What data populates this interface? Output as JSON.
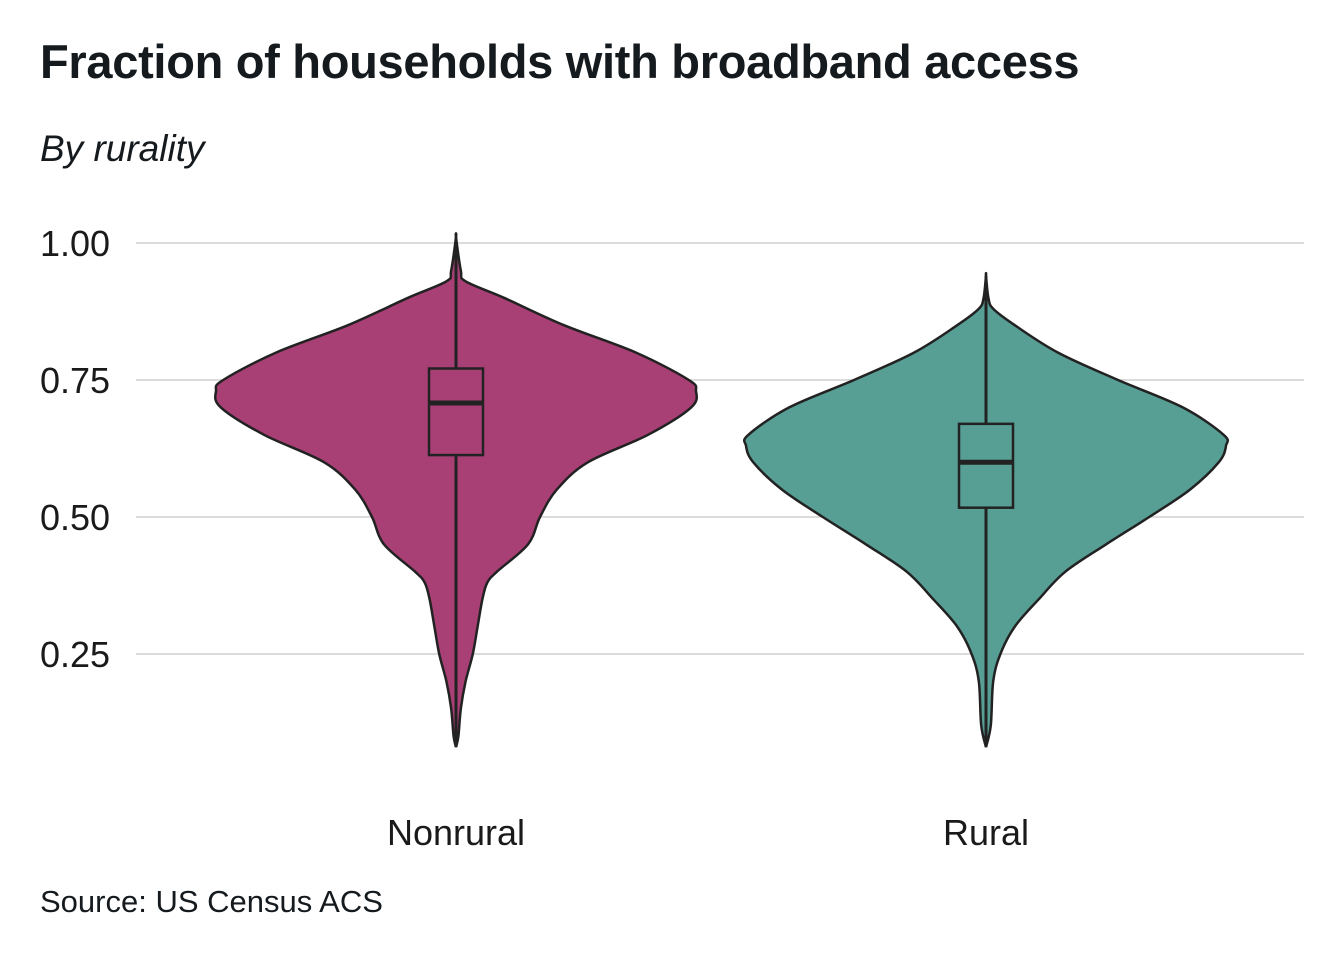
{
  "chart_data": {
    "type": "violin",
    "title": "Fraction of households with broadband access",
    "subtitle": "By rurality",
    "source": "Source: US Census ACS",
    "xlabel": "",
    "ylabel": "",
    "ylim": [
      0.0,
      1.0
    ],
    "yticks": [
      0.25,
      0.5,
      0.75,
      1.0
    ],
    "ytick_labels": [
      "0.25",
      "0.50",
      "0.75",
      "1.00"
    ],
    "grid": "horizontal",
    "categories": [
      "Nonrural",
      "Rural"
    ],
    "series": [
      {
        "category": "Nonrural",
        "color": "#a83f75",
        "box": {
          "q1": 0.613,
          "median": 0.708,
          "q3": 0.771,
          "whisker_low": 0.386,
          "whisker_high": 0.93
        },
        "range": [
          0.08,
          1.01
        ],
        "density": [
          [
            0.08,
            0.0
          ],
          [
            0.1,
            0.01
          ],
          [
            0.15,
            0.02
          ],
          [
            0.2,
            0.04
          ],
          [
            0.25,
            0.07
          ],
          [
            0.3,
            0.09
          ],
          [
            0.35,
            0.11
          ],
          [
            0.38,
            0.13
          ],
          [
            0.4,
            0.17
          ],
          [
            0.45,
            0.3
          ],
          [
            0.5,
            0.35
          ],
          [
            0.55,
            0.42
          ],
          [
            0.6,
            0.55
          ],
          [
            0.65,
            0.8
          ],
          [
            0.7,
            0.98
          ],
          [
            0.73,
            1.0
          ],
          [
            0.75,
            0.97
          ],
          [
            0.8,
            0.75
          ],
          [
            0.85,
            0.45
          ],
          [
            0.9,
            0.2
          ],
          [
            0.93,
            0.04
          ],
          [
            0.95,
            0.02
          ],
          [
            1.01,
            0.0
          ]
        ]
      },
      {
        "category": "Rural",
        "color": "#579e95",
        "box": {
          "q1": 0.517,
          "median": 0.6,
          "q3": 0.67,
          "whisker_low": 0.29,
          "whisker_high": 0.88
        },
        "range": [
          0.08,
          0.94
        ],
        "density": [
          [
            0.08,
            0.0
          ],
          [
            0.12,
            0.02
          ],
          [
            0.2,
            0.03
          ],
          [
            0.25,
            0.06
          ],
          [
            0.3,
            0.12
          ],
          [
            0.35,
            0.22
          ],
          [
            0.4,
            0.33
          ],
          [
            0.45,
            0.5
          ],
          [
            0.5,
            0.68
          ],
          [
            0.55,
            0.85
          ],
          [
            0.6,
            0.97
          ],
          [
            0.63,
            1.0
          ],
          [
            0.65,
            0.99
          ],
          [
            0.7,
            0.82
          ],
          [
            0.75,
            0.55
          ],
          [
            0.8,
            0.3
          ],
          [
            0.85,
            0.12
          ],
          [
            0.88,
            0.03
          ],
          [
            0.9,
            0.01
          ],
          [
            0.94,
            0.0
          ]
        ]
      }
    ]
  }
}
